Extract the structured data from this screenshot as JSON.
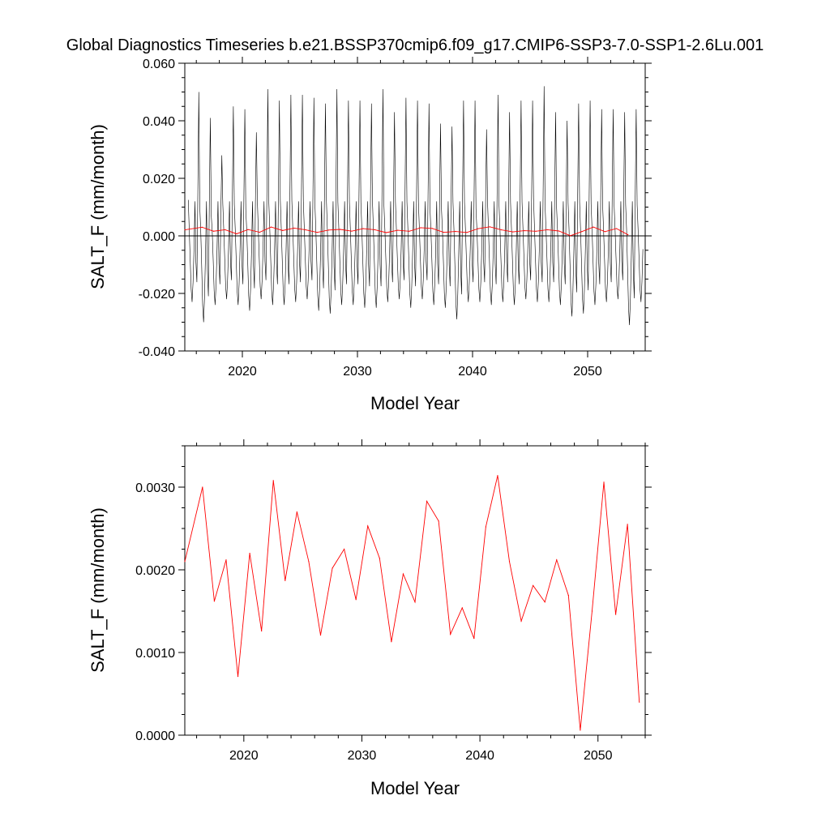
{
  "title": "Global Diagnostics Timeseries b.e21.BSSP370cmip6.f09_g17.CMIP6-SSP3-7.0-SSP1-2.6Lu.001",
  "chart_data": [
    {
      "type": "line",
      "panel": "top",
      "xlabel": "Model Year",
      "ylabel": "SALT_F (mm/month)",
      "xlim": [
        2015,
        2055
      ],
      "ylim": [
        -0.04,
        0.06
      ],
      "xticks": [
        2020,
        2030,
        2040,
        2050
      ],
      "xtick_labels": [
        "2020",
        "2030",
        "2040",
        "2050"
      ],
      "yticks": [
        -0.04,
        -0.02,
        0.0,
        0.02,
        0.04,
        0.06
      ],
      "ytick_labels": [
        "-0.040",
        "-0.020",
        "0.000",
        "0.020",
        "0.040",
        "0.060"
      ],
      "zero_line": true,
      "grid": false,
      "monthly_cycle": {
        "start_year": 2015,
        "years": 39.5,
        "annual_peak": [
          0.05,
          0.041,
          0.028,
          0.045,
          0.044,
          0.036,
          0.051,
          0.047,
          0.049,
          0.049,
          0.048,
          0.046,
          0.051,
          0.047,
          0.047,
          0.046,
          0.051,
          0.043,
          0.048,
          0.047,
          0.046,
          0.039,
          0.038,
          0.047,
          0.047,
          0.037,
          0.049,
          0.043,
          0.047,
          0.047,
          0.052,
          0.043,
          0.04,
          0.046,
          0.047,
          0.044,
          0.044,
          0.043,
          0.044,
          0.043
        ],
        "annual_trough": [
          -0.023,
          -0.03,
          -0.024,
          -0.022,
          -0.024,
          -0.026,
          -0.022,
          -0.024,
          -0.024,
          -0.023,
          -0.022,
          -0.026,
          -0.027,
          -0.024,
          -0.024,
          -0.025,
          -0.025,
          -0.023,
          -0.022,
          -0.025,
          -0.022,
          -0.024,
          -0.025,
          -0.029,
          -0.023,
          -0.023,
          -0.024,
          -0.023,
          -0.024,
          -0.022,
          -0.023,
          -0.023,
          -0.024,
          -0.028,
          -0.027,
          -0.024,
          -0.023,
          -0.022,
          -0.031,
          -0.023
        ],
        "secondary_peak": 0.012
      },
      "series": [
        {
          "role": "monthly",
          "color": "#000000"
        },
        {
          "role": "annual",
          "color": "#ff0000"
        }
      ]
    },
    {
      "type": "line",
      "panel": "bottom",
      "xlabel": "Model Year",
      "ylabel": "SALT_F (mm/month)",
      "xlim": [
        2015,
        2054
      ],
      "ylim": [
        0.0,
        0.0035
      ],
      "xticks": [
        2020,
        2030,
        2040,
        2050
      ],
      "xtick_labels": [
        "2020",
        "2030",
        "2040",
        "2050"
      ],
      "yticks": [
        0.0,
        0.001,
        0.002,
        0.003
      ],
      "ytick_labels": [
        "0.0000",
        "0.0010",
        "0.0020",
        "0.0030"
      ],
      "grid": false,
      "series": [
        {
          "role": "annual",
          "color": "#ff0000",
          "x": [
            2015.0,
            2016.5,
            2017.5,
            2018.5,
            2019.5,
            2020.5,
            2021.5,
            2022.5,
            2023.5,
            2024.5,
            2025.5,
            2026.5,
            2027.5,
            2028.5,
            2029.5,
            2030.5,
            2031.5,
            2032.5,
            2033.5,
            2034.5,
            2035.5,
            2036.5,
            2037.5,
            2038.5,
            2039.5,
            2040.5,
            2041.5,
            2042.5,
            2043.5,
            2044.5,
            2045.5,
            2046.5,
            2047.5,
            2048.5,
            2049.5,
            2050.5,
            2051.5,
            2052.5,
            2053.5
          ],
          "y": [
            0.0021,
            0.003,
            0.00162,
            0.00212,
            0.00071,
            0.0022,
            0.00126,
            0.00308,
            0.00187,
            0.0027,
            0.0021,
            0.00121,
            0.00202,
            0.00225,
            0.00164,
            0.00253,
            0.00214,
            0.00113,
            0.00195,
            0.00161,
            0.00283,
            0.00259,
            0.00122,
            0.00154,
            0.00117,
            0.00252,
            0.00314,
            0.0021,
            0.00138,
            0.00181,
            0.00161,
            0.00212,
            0.00169,
            6e-05,
            0.0015,
            0.00306,
            0.00146,
            0.00255,
            0.0004
          ]
        }
      ]
    }
  ]
}
